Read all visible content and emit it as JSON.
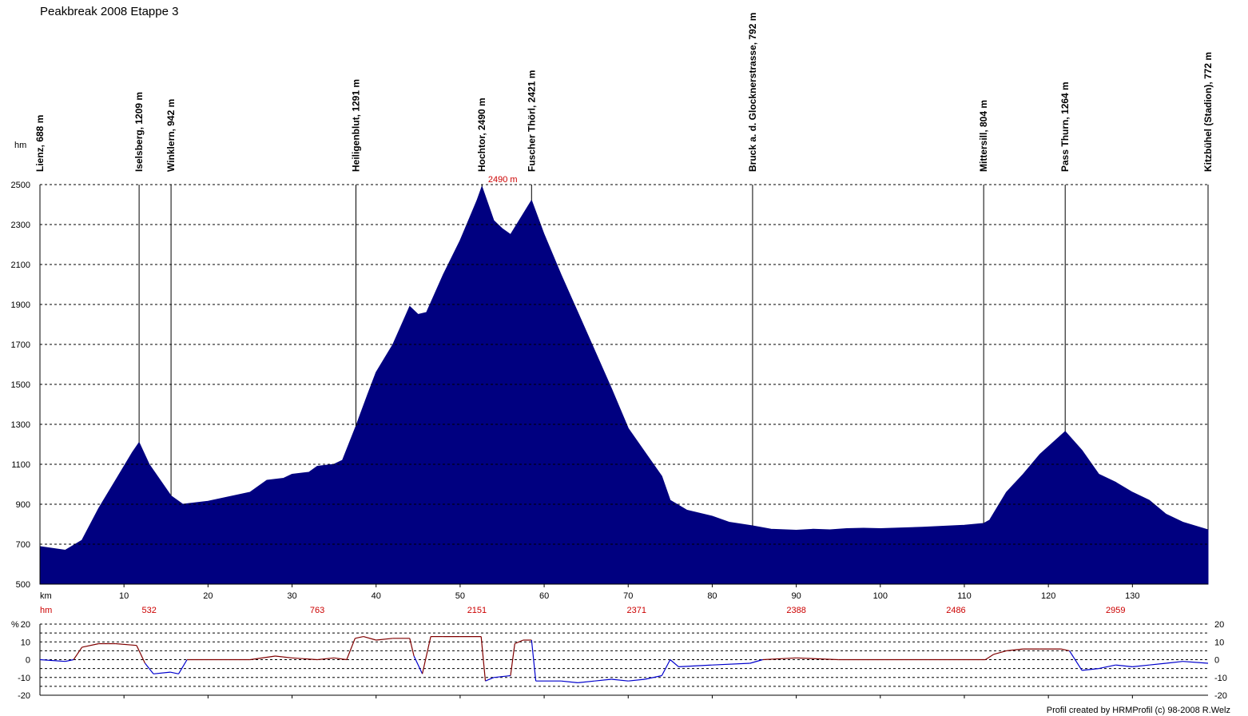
{
  "title": "Peakbreak 2008 Etappe 3",
  "credit": "Profil created by HRMProfil (c) 98-2008 R.Welz",
  "colors": {
    "profile_fill": "#000080",
    "grade_up": "#800000",
    "grade_down": "#0000cc",
    "red_text": "#cc0000"
  },
  "chart_data": [
    {
      "type": "area",
      "y_unit_label": "hm",
      "x_unit_label": "km",
      "xlim": [
        0,
        139
      ],
      "ylim": [
        500,
        2500
      ],
      "x_ticks": [
        10,
        20,
        30,
        40,
        50,
        60,
        70,
        80,
        90,
        100,
        110,
        120,
        130
      ],
      "y_ticks": [
        500,
        700,
        900,
        1100,
        1300,
        1500,
        1700,
        1900,
        2100,
        2300,
        2500
      ],
      "grid": "horizontal dashed",
      "max_label": "2490 m",
      "cumulative_hm_label": "hm",
      "cumulative_hm": [
        {
          "km": 13,
          "value": "532"
        },
        {
          "km": 33,
          "value": "763"
        },
        {
          "km": 52,
          "value": "2151"
        },
        {
          "km": 71,
          "value": "2371"
        },
        {
          "km": 90,
          "value": "2388"
        },
        {
          "km": 109,
          "value": "2486"
        },
        {
          "km": 128,
          "value": "2959"
        }
      ],
      "waypoints": [
        {
          "km": 0,
          "label": "Lienz, 688 m"
        },
        {
          "km": 11.8,
          "label": "Iselsberg, 1209 m"
        },
        {
          "km": 15.6,
          "label": "Winklern, 942 m"
        },
        {
          "km": 37.6,
          "label": "Heiligenblut, 1291 m"
        },
        {
          "km": 52.6,
          "label": "Hochtor, 2490 m"
        },
        {
          "km": 58.5,
          "label": "Fuscher Thörl, 2421 m"
        },
        {
          "km": 84.8,
          "label": "Bruck a. d. Glocknerstrasse, 792 m"
        },
        {
          "km": 112.3,
          "label": "Mittersill, 804 m"
        },
        {
          "km": 122,
          "label": "Pass Thurn, 1264 m"
        },
        {
          "km": 139,
          "label": "Kitzbühel (Stadion), 772 m"
        }
      ],
      "x": [
        0,
        3,
        5,
        7,
        9,
        11,
        11.8,
        13,
        15.6,
        17,
        20,
        25,
        27,
        29,
        30,
        32,
        33,
        34,
        35,
        36,
        37.6,
        39,
        40,
        42,
        44,
        45,
        46,
        48,
        50,
        52,
        52.6,
        54,
        55,
        56,
        58.5,
        60,
        62,
        64,
        66,
        68,
        70,
        72,
        74,
        75,
        77,
        80,
        82,
        84.8,
        87,
        90,
        92,
        94,
        96,
        98,
        100,
        105,
        110,
        112.3,
        113,
        115,
        117,
        119,
        122,
        124,
        126,
        128,
        130,
        132,
        134,
        136,
        139
      ],
      "y": [
        688,
        670,
        720,
        880,
        1020,
        1160,
        1209,
        1100,
        942,
        900,
        915,
        960,
        1020,
        1030,
        1050,
        1060,
        1090,
        1095,
        1100,
        1120,
        1291,
        1450,
        1560,
        1700,
        1890,
        1850,
        1860,
        2050,
        2220,
        2420,
        2490,
        2320,
        2280,
        2250,
        2421,
        2250,
        2050,
        1860,
        1670,
        1480,
        1280,
        1160,
        1040,
        920,
        870,
        840,
        810,
        792,
        775,
        770,
        775,
        772,
        778,
        780,
        778,
        785,
        795,
        804,
        820,
        960,
        1050,
        1150,
        1264,
        1170,
        1050,
        1010,
        960,
        920,
        850,
        810,
        772
      ]
    },
    {
      "type": "line",
      "y_unit_label": "%",
      "xlim": [
        0,
        139
      ],
      "ylim": [
        -20,
        20
      ],
      "y_ticks": [
        -20,
        -10,
        0,
        10,
        20
      ],
      "series": [
        {
          "color_key": "grade",
          "x": [
            0,
            3,
            4,
            5,
            7,
            9,
            11.5,
            12.5,
            13.5,
            15.5,
            16.5,
            17.5,
            20,
            25,
            28,
            30,
            33,
            35,
            36.5,
            37.5,
            38.5,
            40,
            42,
            44,
            44.5,
            45.5,
            46.5,
            48,
            50,
            52.5,
            53,
            54,
            56,
            56.5,
            57.5,
            58.5,
            59,
            62,
            64,
            66,
            68,
            70,
            72,
            74,
            75,
            76,
            80,
            84.5,
            86,
            90,
            95,
            100,
            105,
            110,
            112.5,
            113.5,
            115,
            117,
            119,
            121.5,
            122.5,
            124,
            126,
            128,
            130,
            132,
            134,
            136,
            139
          ],
          "y": [
            0,
            -1,
            0,
            7,
            9,
            9,
            8,
            -2,
            -8,
            -7,
            -8,
            0,
            0,
            0,
            2,
            1,
            0,
            1,
            0,
            12,
            13,
            11,
            12,
            12,
            2,
            -8,
            13,
            13,
            13,
            13,
            -12,
            -10,
            -9,
            9,
            11,
            11,
            -12,
            -12,
            -13,
            -12,
            -11,
            -12,
            -11,
            -9,
            0,
            -4,
            -3,
            -2,
            0,
            1,
            0,
            0,
            0,
            0,
            0,
            3,
            5,
            6,
            6,
            6,
            5,
            -6,
            -5,
            -3,
            -4,
            -3,
            -2,
            -1,
            -2
          ]
        }
      ]
    }
  ]
}
